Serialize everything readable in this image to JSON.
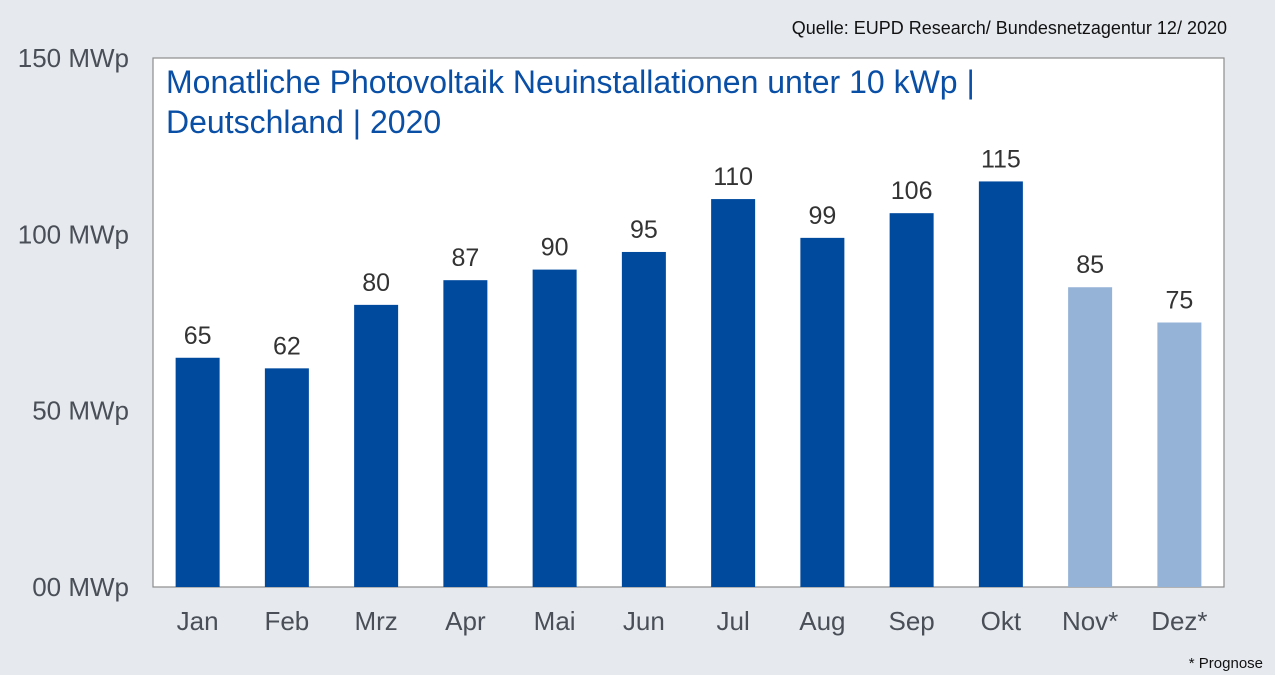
{
  "source": "Quelle: EUPD Research/ Bundesnetzagentur 12/ 2020",
  "footnote": "* Prognose",
  "chart_data": {
    "type": "bar",
    "title_lines": [
      "Monatliche Photovoltaik Neuinstallationen unter 10 kWp |",
      "Deutschland | 2020"
    ],
    "categories": [
      "Jan",
      "Feb",
      "Mrz",
      "Apr",
      "Mai",
      "Jun",
      "Jul",
      "Aug",
      "Sep",
      "Okt",
      "Nov*",
      "Dez*"
    ],
    "values": [
      65,
      62,
      80,
      87,
      90,
      95,
      110,
      99,
      106,
      115,
      85,
      75
    ],
    "data_labels": [
      "65",
      "62",
      "80",
      "87",
      "90",
      "95",
      "110",
      "99",
      "106",
      "115",
      "85",
      "75"
    ],
    "forecast": [
      false,
      false,
      false,
      false,
      false,
      false,
      false,
      false,
      false,
      false,
      true,
      true
    ],
    "ylim": [
      0,
      150
    ],
    "yticks": [
      {
        "value": 150,
        "label": "150 MWp"
      },
      {
        "value": 100,
        "label": "100 MWp"
      },
      {
        "value": 50,
        "label": "50 MWp"
      },
      {
        "value": 0,
        "label": "00 MWp"
      }
    ],
    "grid": false,
    "colors": {
      "actual": "#004a9e",
      "forecast": "#95b3d7",
      "title": "#0a4fa6",
      "plot_background": "#ffffff",
      "page_background": "#e6eaef"
    }
  }
}
